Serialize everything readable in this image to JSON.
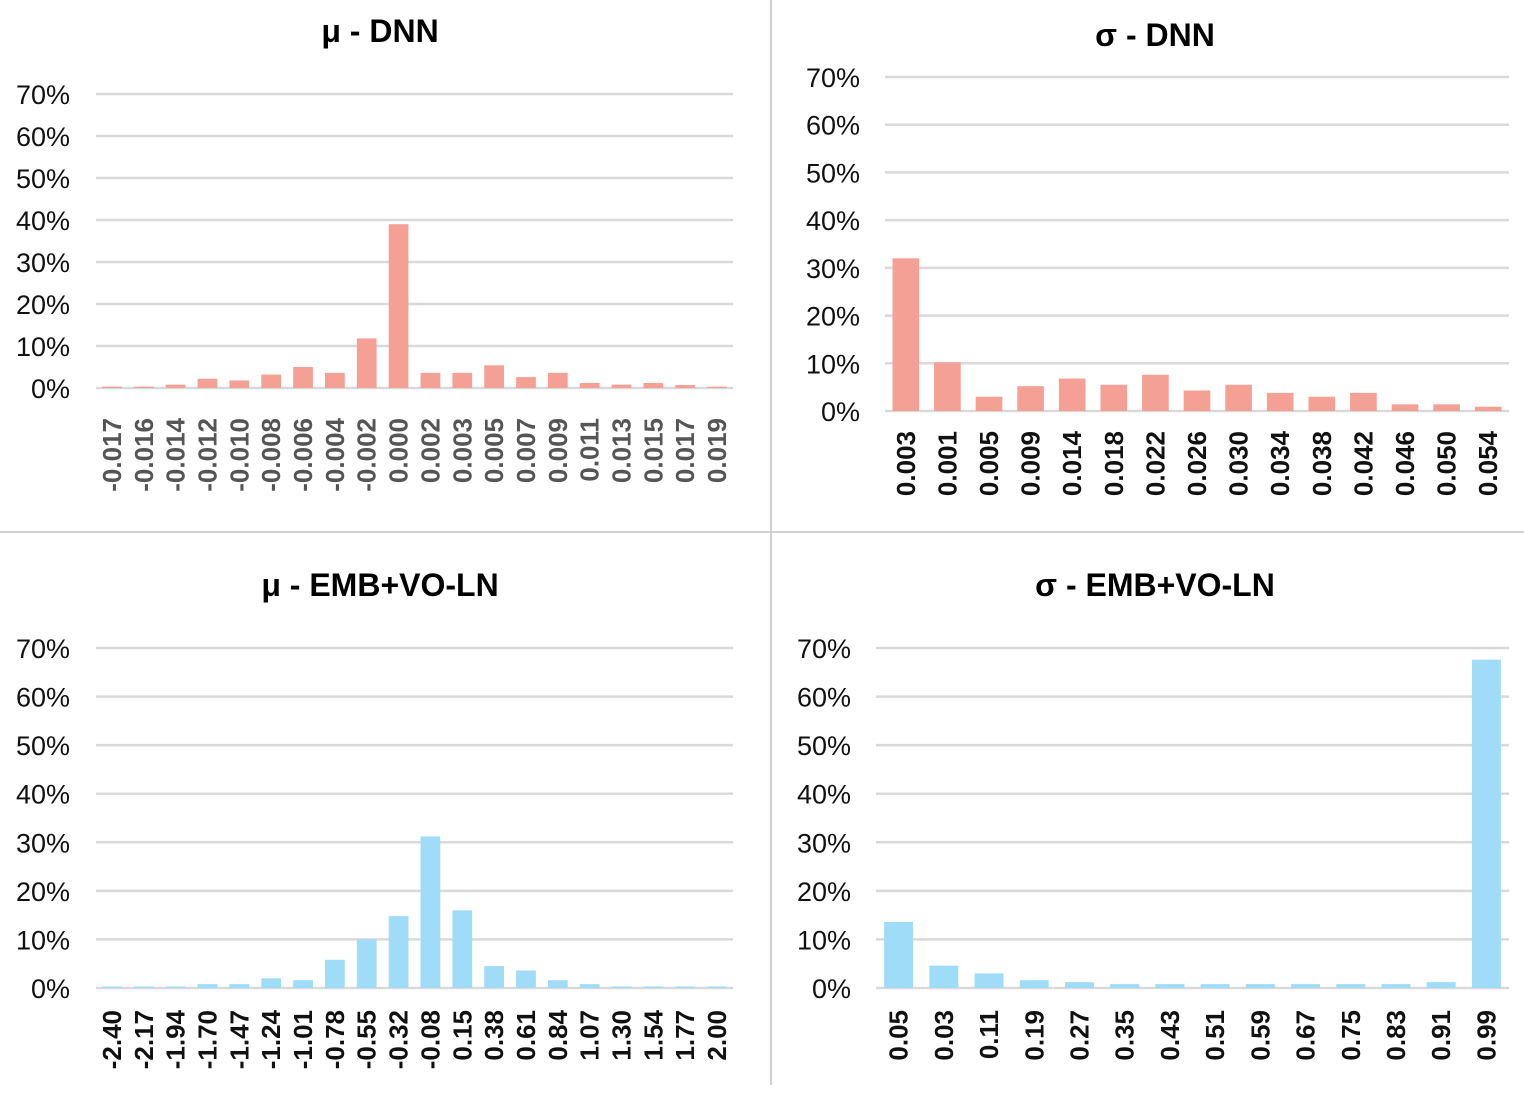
{
  "colors": {
    "dnn_bar": "#f4a095",
    "emb_bar": "#9edcf7",
    "grid": "#d9d9d9",
    "divider": "#d0d0d0"
  },
  "chart_data": [
    {
      "type": "bar",
      "title": "μ - DNN",
      "xlabel": "",
      "ylabel": "",
      "ylim": [
        0,
        70
      ],
      "yticks": [
        "0%",
        "10%",
        "20%",
        "30%",
        "40%",
        "50%",
        "60%",
        "70%"
      ],
      "grid": true,
      "legend": "none",
      "categories": [
        "-0.017",
        "-0.016",
        "-0.014",
        "-0.012",
        "-0.010",
        "-0.008",
        "-0.006",
        "-0.004",
        "-0.002",
        "0.000",
        "0.002",
        "0.003",
        "0.005",
        "0.007",
        "0.009",
        "0.011",
        "0.013",
        "0.015",
        "0.017",
        "0.019"
      ],
      "values": [
        0.3,
        0.3,
        0.8,
        2.2,
        1.8,
        3.2,
        5.0,
        3.6,
        11.8,
        39.0,
        3.6,
        3.6,
        5.4,
        2.6,
        3.6,
        1.2,
        0.8,
        1.2,
        0.7,
        0.3
      ]
    },
    {
      "type": "bar",
      "title": "σ - DNN",
      "xlabel": "",
      "ylabel": "",
      "ylim": [
        0,
        70
      ],
      "yticks": [
        "0%",
        "10%",
        "20%",
        "30%",
        "40%",
        "50%",
        "60%",
        "70%"
      ],
      "grid": true,
      "legend": "none",
      "categories": [
        "0.003",
        "0.001",
        "0.005",
        "0.009",
        "0.014",
        "0.018",
        "0.022",
        "0.026",
        "0.030",
        "0.034",
        "0.038",
        "0.042",
        "0.046",
        "0.050",
        "0.054"
      ],
      "values": [
        32.0,
        10.2,
        3.0,
        5.2,
        6.8,
        5.5,
        7.6,
        4.3,
        5.5,
        3.8,
        3.0,
        3.8,
        1.4,
        1.4,
        0.9
      ]
    },
    {
      "type": "bar",
      "title": "μ - EMB+VO-LN",
      "xlabel": "",
      "ylabel": "",
      "ylim": [
        0,
        70
      ],
      "yticks": [
        "0%",
        "10%",
        "20%",
        "30%",
        "40%",
        "50%",
        "60%",
        "70%"
      ],
      "grid": true,
      "legend": "none",
      "categories": [
        "-2.40",
        "-2.17",
        "-1.94",
        "-1.70",
        "-1.47",
        "-1.24",
        "-1.01",
        "-0.78",
        "-0.55",
        "-0.32",
        "-0.08",
        "0.15",
        "0.38",
        "0.61",
        "0.84",
        "1.07",
        "1.30",
        "1.54",
        "1.77",
        "2.00"
      ],
      "values": [
        0.3,
        0.3,
        0.3,
        0.8,
        0.8,
        2.0,
        1.6,
        5.8,
        10.0,
        14.8,
        31.2,
        16.0,
        4.5,
        3.6,
        1.6,
        0.8,
        0.3,
        0.3,
        0.3,
        0.3
      ]
    },
    {
      "type": "bar",
      "title": "σ - EMB+VO-LN",
      "xlabel": "",
      "ylabel": "",
      "ylim": [
        0,
        70
      ],
      "yticks": [
        "0%",
        "10%",
        "20%",
        "30%",
        "40%",
        "50%",
        "60%",
        "70%"
      ],
      "grid": true,
      "legend": "none",
      "categories": [
        "0.05",
        "0.03",
        "0.11",
        "0.19",
        "0.27",
        "0.35",
        "0.43",
        "0.51",
        "0.59",
        "0.67",
        "0.75",
        "0.83",
        "0.91",
        "0.99"
      ],
      "values": [
        13.6,
        4.6,
        3.0,
        1.6,
        1.2,
        0.8,
        0.8,
        0.8,
        0.8,
        0.8,
        0.8,
        0.8,
        1.2,
        67.6
      ]
    }
  ]
}
